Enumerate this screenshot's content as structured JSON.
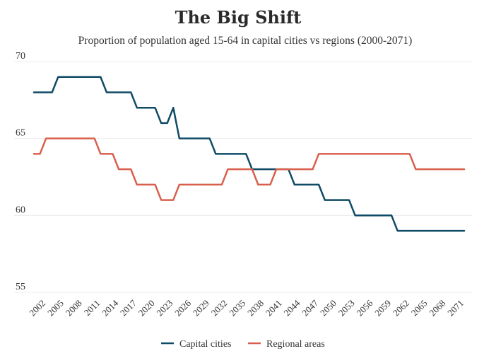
{
  "chart_data": {
    "type": "line",
    "title": "The Big Shift",
    "subtitle": "Proportion of population aged 15-64 in capital cities vs regions (2000-2071)",
    "xlabel": "",
    "ylabel": "",
    "ylim": [
      55,
      70
    ],
    "yticks": [
      55,
      60,
      65,
      70
    ],
    "grid": true,
    "legend_position": "bottom",
    "x": [
      2000,
      2001,
      2002,
      2003,
      2004,
      2005,
      2006,
      2007,
      2008,
      2009,
      2010,
      2011,
      2012,
      2013,
      2014,
      2015,
      2016,
      2017,
      2018,
      2019,
      2020,
      2021,
      2022,
      2023,
      2024,
      2025,
      2026,
      2027,
      2028,
      2029,
      2030,
      2031,
      2032,
      2033,
      2034,
      2035,
      2036,
      2037,
      2038,
      2039,
      2040,
      2041,
      2042,
      2043,
      2044,
      2045,
      2046,
      2047,
      2048,
      2049,
      2050,
      2051,
      2052,
      2053,
      2054,
      2055,
      2056,
      2057,
      2058,
      2059,
      2060,
      2061,
      2062,
      2063,
      2064,
      2065,
      2066,
      2067,
      2068,
      2069,
      2070,
      2071
    ],
    "xticks": [
      2002,
      2005,
      2008,
      2011,
      2014,
      2017,
      2020,
      2023,
      2026,
      2029,
      2032,
      2035,
      2038,
      2041,
      2044,
      2047,
      2050,
      2053,
      2056,
      2059,
      2062,
      2065,
      2068,
      2071
    ],
    "series": [
      {
        "name": "Capital cities",
        "color": "#0f4a66",
        "values": [
          68,
          68,
          68,
          68,
          69,
          69,
          69,
          69,
          69,
          69,
          69,
          69,
          68,
          68,
          68,
          68,
          68,
          67,
          67,
          67,
          67,
          66,
          66,
          67,
          65,
          65,
          65,
          65,
          65,
          65,
          64,
          64,
          64,
          64,
          64,
          64,
          63,
          63,
          63,
          63,
          63,
          63,
          63,
          62,
          62,
          62,
          62,
          62,
          61,
          61,
          61,
          61,
          61,
          60,
          60,
          60,
          60,
          60,
          60,
          60,
          59,
          59,
          59,
          59,
          59,
          59,
          59,
          59,
          59,
          59,
          59,
          59
        ]
      },
      {
        "name": "Regional areas",
        "color": "#d9604c",
        "values": [
          64,
          64,
          65,
          65,
          65,
          65,
          65,
          65,
          65,
          65,
          65,
          64,
          64,
          64,
          63,
          63,
          63,
          62,
          62,
          62,
          62,
          61,
          61,
          61,
          62,
          62,
          62,
          62,
          62,
          62,
          62,
          62,
          63,
          63,
          63,
          63,
          63,
          62,
          62,
          62,
          63,
          63,
          63,
          63,
          63,
          63,
          63,
          64,
          64,
          64,
          64,
          64,
          64,
          64,
          64,
          64,
          64,
          64,
          64,
          64,
          64,
          64,
          64,
          63,
          63,
          63,
          63,
          63,
          63,
          63,
          63,
          63
        ]
      }
    ]
  }
}
